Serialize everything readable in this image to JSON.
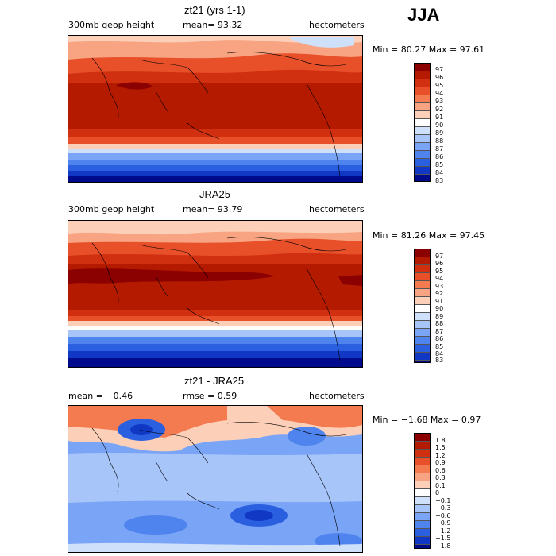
{
  "season": "JJA",
  "panels": [
    {
      "title": "zt21 (yrs 1-1)",
      "left": "300mb geop height",
      "center": "mean=  93.32",
      "right": "hectometers",
      "minmax": "Min =  80.27 Max =  97.61",
      "labels": [
        "97",
        "96",
        "95",
        "94",
        "93",
        "92",
        "91",
        "90",
        "89",
        "88",
        "87",
        "86",
        "85",
        "84",
        "83"
      ]
    },
    {
      "title": "JRA25",
      "left": "300mb geop height",
      "center": "mean=  93.79",
      "right": "hectometers",
      "minmax": "Min =  81.26 Max =  97.45",
      "labels": [
        "97",
        "96",
        "95",
        "94",
        "93",
        "92",
        "91",
        "90",
        "89",
        "88",
        "87",
        "86",
        "85",
        "84",
        "83"
      ]
    },
    {
      "title": "zt21 - JRA25",
      "left": "mean =  −0.46",
      "center": "rmse =   0.59",
      "right": "hectometers",
      "minmax": "Min =  −1.68 Max =   0.97",
      "labels": [
        "1.8",
        "1.5",
        "1.2",
        "0.9",
        "0.6",
        "0.3",
        "0.1",
        "0",
        "−0.1",
        "−0.3",
        "−0.6",
        "−0.9",
        "−1.2",
        "−1.5",
        "−1.8"
      ]
    }
  ],
  "colors": {
    "scale": [
      "#8b0000",
      "#b41a00",
      "#d03010",
      "#e8502a",
      "#f47a50",
      "#f8a482",
      "#fcd0b8",
      "#ffffff",
      "#cfe0fb",
      "#a8c5fa",
      "#7aa4f6",
      "#4f83ee",
      "#2a5fe0",
      "#1038c4",
      "#000a8c"
    ]
  }
}
